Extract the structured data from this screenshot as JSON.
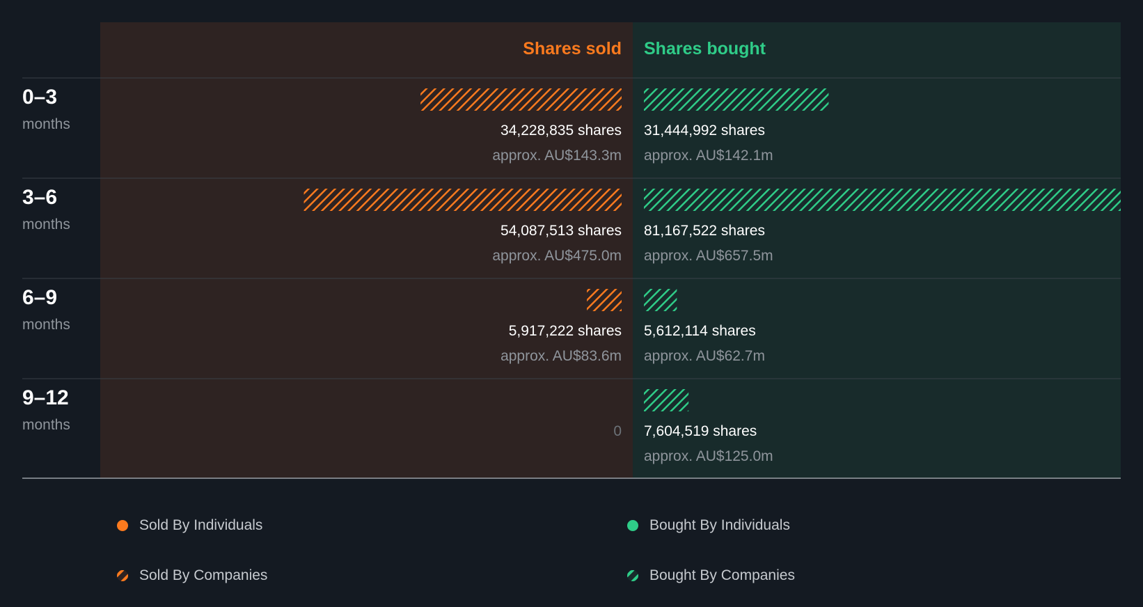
{
  "colors": {
    "background": "#141a22",
    "sold_panel": "#2e2322",
    "bought_panel": "#182b2b",
    "sold": "#fb7a1e",
    "bought": "#2fcc88",
    "grid": "#3a4048"
  },
  "chart_data": {
    "type": "bar",
    "orientation": "horizontal-diverging",
    "header": {
      "sold": "Shares sold",
      "bought": "Shares bought"
    },
    "categories": [
      {
        "period": "0–3",
        "unit": "months"
      },
      {
        "period": "3–6",
        "unit": "months"
      },
      {
        "period": "6–9",
        "unit": "months"
      },
      {
        "period": "9–12",
        "unit": "months"
      }
    ],
    "series": [
      {
        "name": "Shares sold",
        "side": "left",
        "values": [
          34228835,
          54087513,
          5917222,
          0
        ]
      },
      {
        "name": "Shares bought",
        "side": "right",
        "values": [
          31444992,
          81167522,
          5612114,
          7604519
        ]
      }
    ],
    "labels": {
      "sold_shares": [
        "34,228,835 shares",
        "54,087,513 shares",
        "5,917,222 shares",
        "0"
      ],
      "sold_approx": [
        "approx. AU$143.3m",
        "approx. AU$475.0m",
        "approx. AU$83.6m",
        ""
      ],
      "bought_shares": [
        "31,444,992 shares",
        "81,167,522 shares",
        "5,612,114 shares",
        "7,604,519 shares"
      ],
      "bought_approx": [
        "approx. AU$142.1m",
        "approx. AU$657.5m",
        "approx. AU$62.7m",
        "approx. AU$125.0m"
      ]
    },
    "bar_pattern": "hatched",
    "legend": [
      {
        "label": "Sold By Individuals",
        "marker": "solid",
        "color": "#fb7a1e"
      },
      {
        "label": "Bought By Individuals",
        "marker": "solid",
        "color": "#2fcc88"
      },
      {
        "label": "Sold By Companies",
        "marker": "hatched",
        "color": "#fb7a1e"
      },
      {
        "label": "Bought By Companies",
        "marker": "hatched",
        "color": "#2fcc88"
      }
    ],
    "legend_position": "bottom"
  }
}
